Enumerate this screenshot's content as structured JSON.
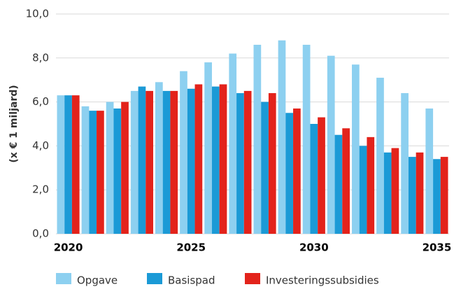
{
  "chart_data": {
    "type": "bar",
    "y_label": "(x € 1 miljard)",
    "categories": [
      "2020",
      null,
      null,
      null,
      null,
      "2025",
      null,
      null,
      null,
      null,
      "2030",
      null,
      null,
      null,
      null,
      "2035"
    ],
    "series": [
      {
        "name": "Opgave",
        "color": "#8dd0f0",
        "values": [
          6.3,
          5.8,
          6.0,
          6.5,
          6.9,
          7.4,
          7.8,
          8.2,
          8.6,
          8.8,
          8.6,
          8.1,
          7.7,
          7.1,
          6.4,
          5.7
        ]
      },
      {
        "name": "Basispad",
        "color": "#1b9ad6",
        "values": [
          6.3,
          5.6,
          5.7,
          6.7,
          6.5,
          6.6,
          6.7,
          6.4,
          6.0,
          5.5,
          5.0,
          4.5,
          4.0,
          3.7,
          3.5,
          3.4
        ]
      },
      {
        "name": "Investeringssubsidies",
        "color": "#e3231b",
        "values": [
          6.3,
          5.6,
          6.0,
          6.5,
          6.5,
          6.8,
          6.8,
          6.5,
          6.4,
          5.7,
          5.3,
          4.8,
          4.4,
          3.9,
          3.7,
          3.5
        ]
      }
    ],
    "ylim": [
      0,
      10
    ],
    "yticks": [
      {
        "value": 0,
        "label": "0,0"
      },
      {
        "value": 2,
        "label": "2,0"
      },
      {
        "value": 4,
        "label": "4,0"
      },
      {
        "value": 6,
        "label": "6,0"
      },
      {
        "value": 8,
        "label": "8,0"
      },
      {
        "value": 10,
        "label": "10,0"
      }
    ],
    "grid": true,
    "legend": "bottom"
  }
}
